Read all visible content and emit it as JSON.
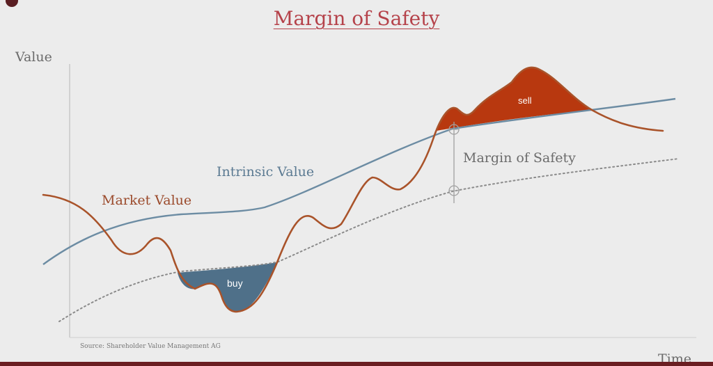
{
  "title": "Margin of Safety",
  "y_axis_label": "Value",
  "x_axis_label": "Time",
  "labels": {
    "market_value": "Market Value",
    "intrinsic_value": "Intrinsic Value",
    "margin_of_safety": "Margin of Safety",
    "buy": "buy",
    "sell": "sell"
  },
  "source": "Source: Shareholder Value Management AG",
  "colors": {
    "title": "#b5424a",
    "market_value_line": "#a9532a",
    "intrinsic_value_line": "#6c8ca3",
    "margin_line": "#8a8a8a",
    "buy_fill": "#4f7089",
    "sell_fill": "#b8380f",
    "axis": "#c8c8c8",
    "text": "#6b6b6b"
  }
}
